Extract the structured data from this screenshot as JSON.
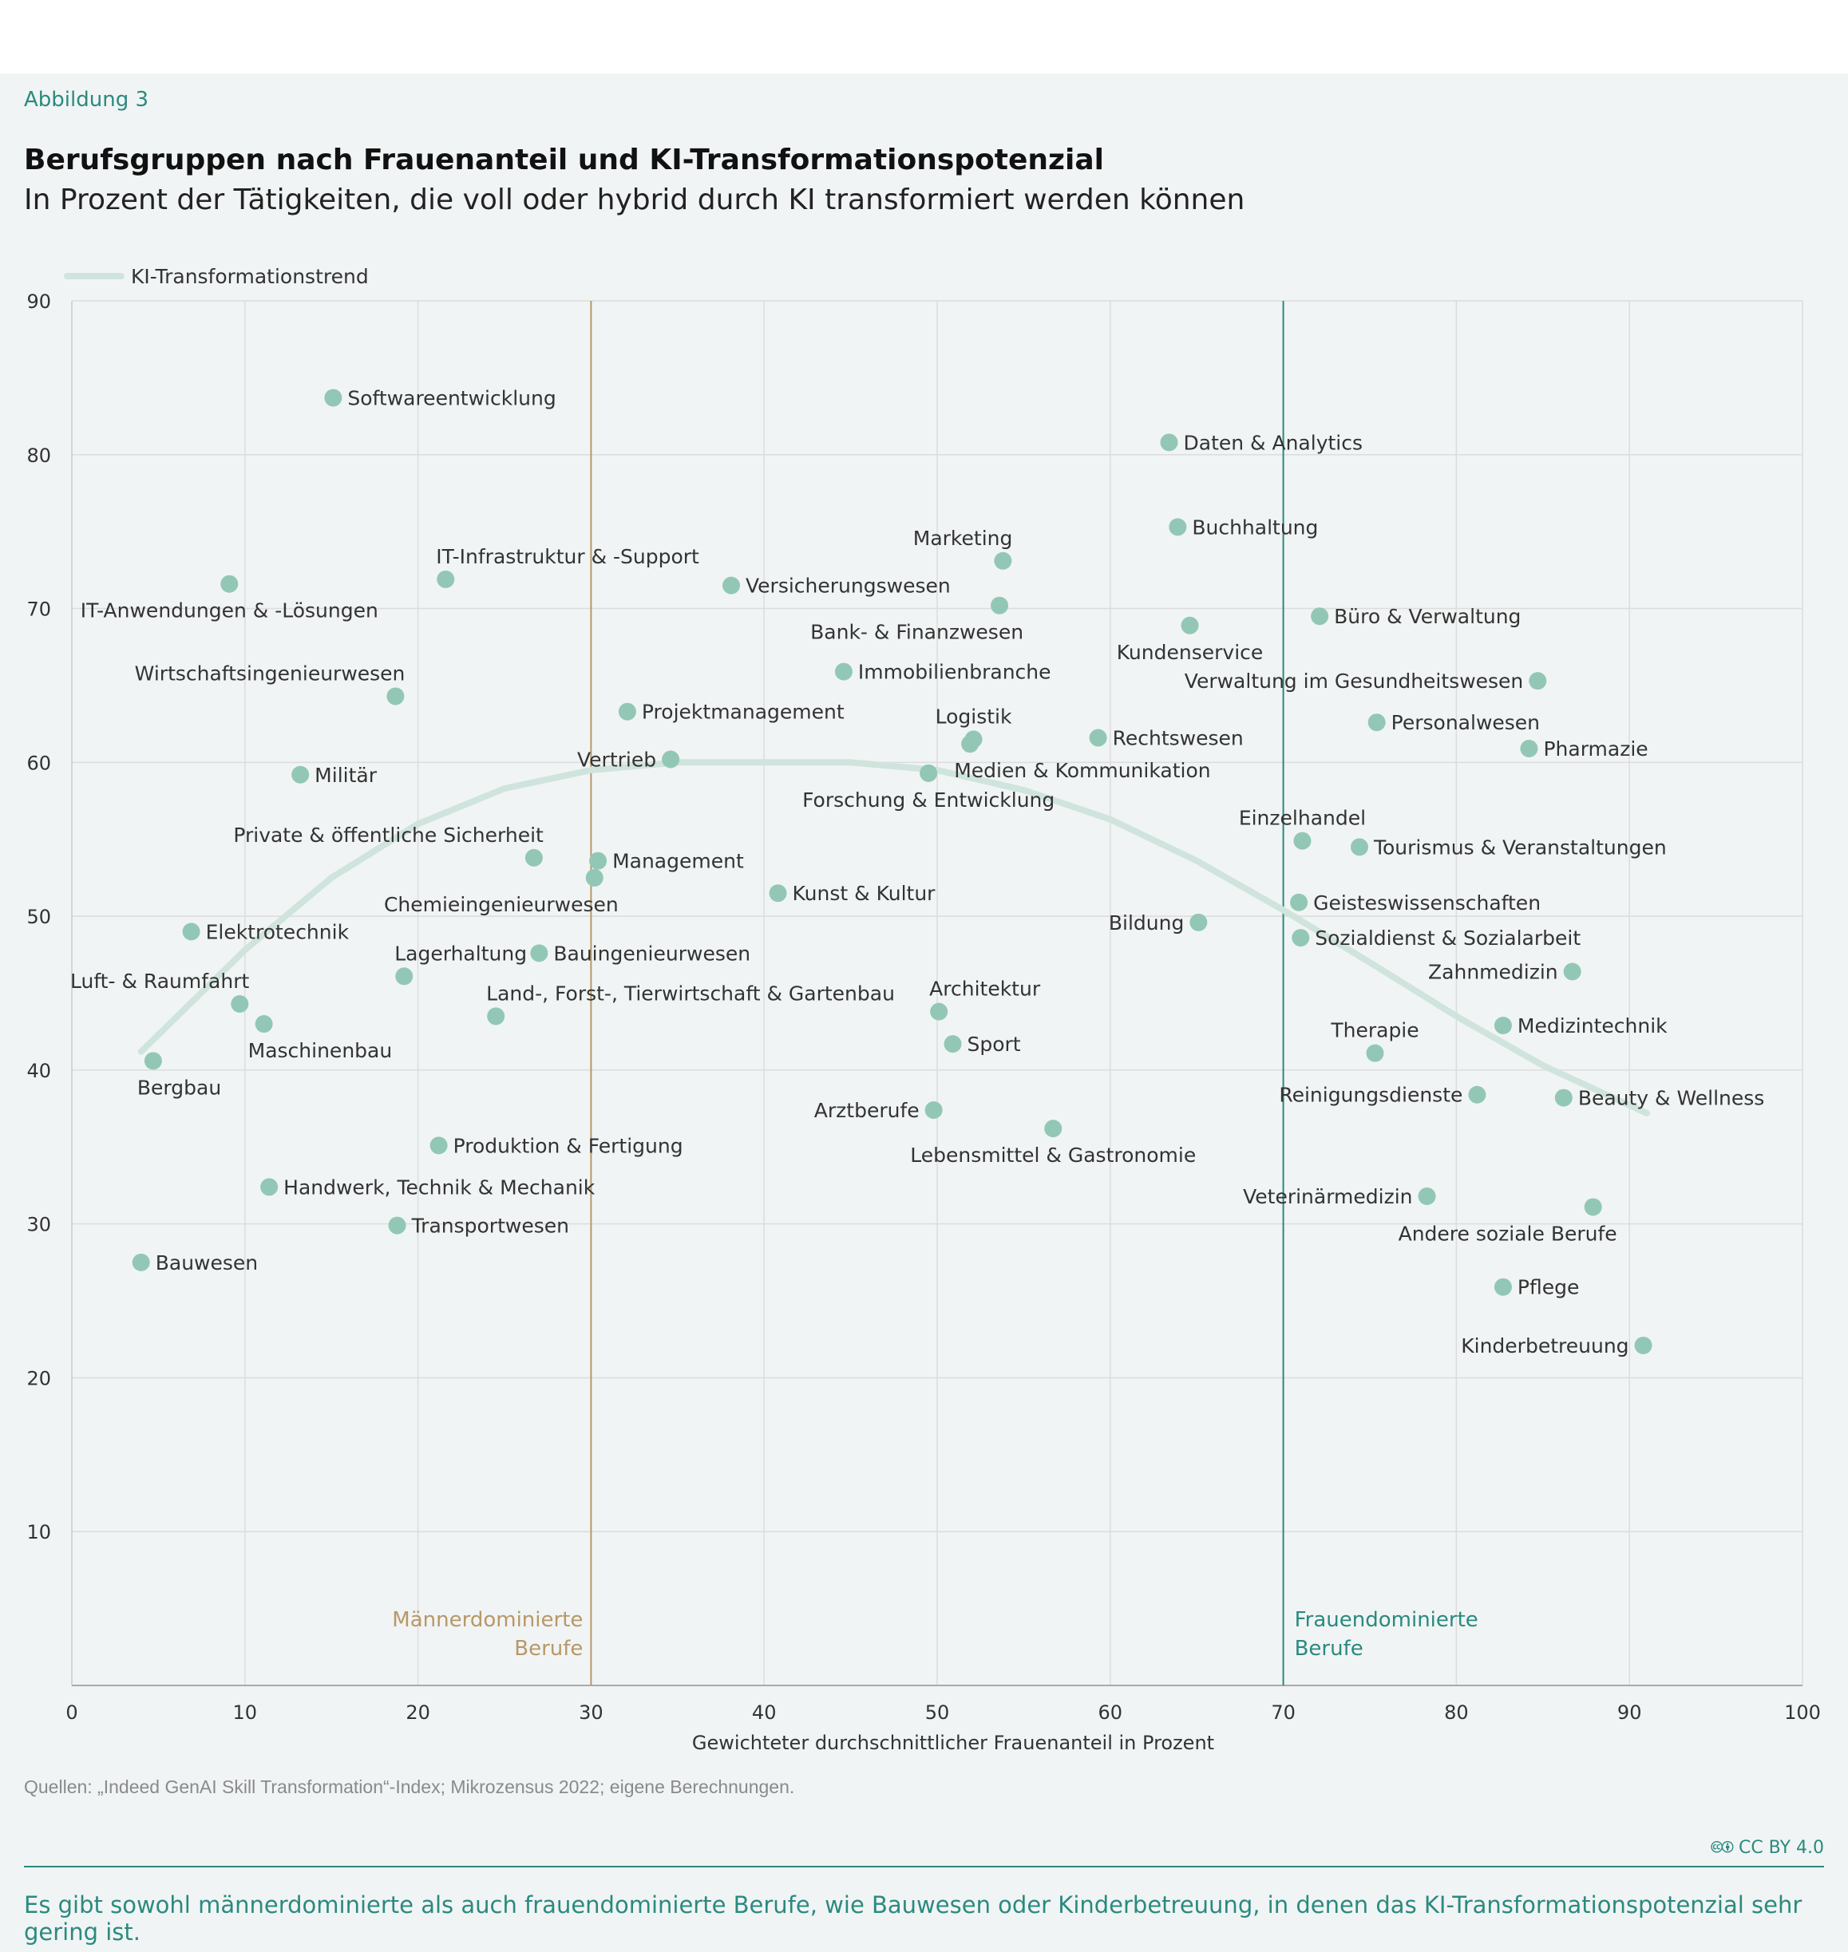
{
  "figure_label": "Abbildung 3",
  "title": "Berufsgruppen nach Frauenanteil und KI-Transformationspotenzial",
  "subtitle": "In Prozent der Tätigkeiten, die voll oder hybrid durch KI transformiert werden können",
  "source": "Quellen: „Indeed GenAI Skill Transformation“-Index; Mikrozensus 2022; eigene Berechnungen.",
  "license": "CC BY 4.0",
  "takeaway": "Es gibt sowohl männerdominierte als auch frauendominierte Berufe, wie Bauwesen oder Kinderbetreuung, in denen das KI-Transformationspotenzial sehr gering ist.",
  "colors": {
    "point": "#92c7b6",
    "trend": "#cfe4dc",
    "male_line": "#b89868",
    "female_line": "#2a8a80",
    "grid": "#dcdcdc",
    "text": "#333333"
  },
  "chart_data": {
    "type": "scatter",
    "xlabel": "Gewichteter durchschnittlicher Frauenanteil in Prozent",
    "ylabel": "",
    "xlim": [
      0,
      100
    ],
    "ylim": [
      0,
      90
    ],
    "x_ticks": [
      0,
      10,
      20,
      30,
      40,
      50,
      60,
      70,
      80,
      90,
      100
    ],
    "y_ticks": [
      10,
      20,
      30,
      40,
      50,
      60,
      70,
      80,
      90
    ],
    "grid": true,
    "legend": [
      {
        "label": "KI-Transformationstrend",
        "type": "line"
      }
    ],
    "trend": {
      "name": "KI-Transformationstrend",
      "points": [
        [
          4,
          41.2
        ],
        [
          10,
          47.8
        ],
        [
          15,
          52.5
        ],
        [
          20,
          56
        ],
        [
          25,
          58.3
        ],
        [
          30,
          59.5
        ],
        [
          35,
          60
        ],
        [
          40,
          60
        ],
        [
          45,
          60
        ],
        [
          50,
          59.5
        ],
        [
          55,
          58.2
        ],
        [
          60,
          56.3
        ],
        [
          65,
          53.6
        ],
        [
          70,
          50.4
        ],
        [
          75,
          47
        ],
        [
          80,
          43.5
        ],
        [
          85,
          40.3
        ],
        [
          91,
          37.2
        ]
      ]
    },
    "reference_lines": [
      {
        "x": 30,
        "label": [
          "Männerdominierte",
          "Berufe"
        ],
        "color_key": "male_line",
        "label_side": "left"
      },
      {
        "x": 70,
        "label": [
          "Frauendominierte",
          "Berufe"
        ],
        "color_key": "female_line",
        "label_side": "right"
      }
    ],
    "points": [
      {
        "label": "Softwareentwicklung",
        "x": 15.1,
        "y": 83.7,
        "pos": "right"
      },
      {
        "label": "Daten & Analytics",
        "x": 63.4,
        "y": 80.8,
        "pos": "right"
      },
      {
        "label": "Buchhaltung",
        "x": 63.9,
        "y": 75.3,
        "pos": "right"
      },
      {
        "label": "Marketing",
        "x": 53.8,
        "y": 73.1,
        "pos": "above-left"
      },
      {
        "label": "IT-Infrastruktur & -Support",
        "x": 21.6,
        "y": 71.9,
        "pos": "above-right"
      },
      {
        "label": "IT-Anwendungen & -Lösungen",
        "x": 9.1,
        "y": 71.6,
        "pos": "below-center"
      },
      {
        "label": "Versicherungswesen",
        "x": 38.1,
        "y": 71.5,
        "pos": "right"
      },
      {
        "label": "Bank- & Finanzwesen",
        "x": 53.6,
        "y": 70.2,
        "pos": "below-left"
      },
      {
        "label": "Büro & Verwaltung",
        "x": 72.1,
        "y": 69.5,
        "pos": "right"
      },
      {
        "label": "Kundenservice",
        "x": 64.6,
        "y": 68.9,
        "pos": "below-center"
      },
      {
        "label": "Immobilienbranche",
        "x": 44.6,
        "y": 65.9,
        "pos": "right"
      },
      {
        "label": "Verwaltung im Gesundheitswesen",
        "x": 84.7,
        "y": 65.3,
        "pos": "left"
      },
      {
        "label": "Wirtschaftsingenieurwesen",
        "x": 18.7,
        "y": 64.3,
        "pos": "above-left"
      },
      {
        "label": "Projektmanagement",
        "x": 32.1,
        "y": 63.3,
        "pos": "right"
      },
      {
        "label": "Personalwesen",
        "x": 75.4,
        "y": 62.6,
        "pos": "right"
      },
      {
        "label": "Logistik",
        "x": 52.1,
        "y": 61.5,
        "pos": "above-center"
      },
      {
        "label": "Rechtswesen",
        "x": 59.3,
        "y": 61.6,
        "pos": "right"
      },
      {
        "label": "Medien & Kommunikation",
        "x": 51.9,
        "y": 61.2,
        "pos": "below-right"
      },
      {
        "label": "Pharmazie",
        "x": 84.2,
        "y": 60.9,
        "pos": "right"
      },
      {
        "label": "Vertrieb",
        "x": 34.6,
        "y": 60.2,
        "pos": "left"
      },
      {
        "label": "Militär",
        "x": 13.2,
        "y": 59.2,
        "pos": "right"
      },
      {
        "label": "Forschung & Entwicklung",
        "x": 49.5,
        "y": 59.3,
        "pos": "below-center"
      },
      {
        "label": "Einzelhandel",
        "x": 71.1,
        "y": 54.9,
        "pos": "above-center"
      },
      {
        "label": "Tourismus & Veranstaltungen",
        "x": 74.4,
        "y": 54.5,
        "pos": "right"
      },
      {
        "label": "Private & öffentliche Sicherheit",
        "x": 26.7,
        "y": 53.8,
        "pos": "above-left"
      },
      {
        "label": "Management",
        "x": 30.4,
        "y": 53.6,
        "pos": "right"
      },
      {
        "label": "Chemieingenieurwesen",
        "x": 30.2,
        "y": 52.5,
        "pos": "below-left"
      },
      {
        "label": "Kunst & Kultur",
        "x": 40.8,
        "y": 51.5,
        "pos": "right"
      },
      {
        "label": "Geisteswissenschaften",
        "x": 70.9,
        "y": 50.9,
        "pos": "right"
      },
      {
        "label": "Bildung",
        "x": 65.1,
        "y": 49.6,
        "pos": "left"
      },
      {
        "label": "Elektrotechnik",
        "x": 6.9,
        "y": 49.0,
        "pos": "right"
      },
      {
        "label": "Sozialdienst & Sozialarbeit",
        "x": 71.0,
        "y": 48.6,
        "pos": "right"
      },
      {
        "label": "Bauingenieurwesen",
        "x": 27.0,
        "y": 47.6,
        "pos": "right"
      },
      {
        "label": "Zahnmedizin",
        "x": 86.7,
        "y": 46.4,
        "pos": "left"
      },
      {
        "label": "Lagerhaltung",
        "x": 19.2,
        "y": 46.1,
        "pos": "above-right"
      },
      {
        "label": "Luft- & Raumfahrt",
        "x": 9.7,
        "y": 44.3,
        "pos": "above-left"
      },
      {
        "label": "Architektur",
        "x": 50.1,
        "y": 43.8,
        "pos": "above-right"
      },
      {
        "label": "Land-, Forst-, Tierwirtschaft & Gartenbau",
        "x": 24.5,
        "y": 43.5,
        "pos": "above-right"
      },
      {
        "label": "Maschinenbau",
        "x": 11.1,
        "y": 43.0,
        "pos": "below-right"
      },
      {
        "label": "Medizintechnik",
        "x": 82.7,
        "y": 42.9,
        "pos": "right"
      },
      {
        "label": "Sport",
        "x": 50.9,
        "y": 41.7,
        "pos": "right"
      },
      {
        "label": "Therapie",
        "x": 75.3,
        "y": 41.1,
        "pos": "above-center"
      },
      {
        "label": "Bergbau",
        "x": 4.7,
        "y": 40.6,
        "pos": "below-right"
      },
      {
        "label": "Reinigungsdienste",
        "x": 81.2,
        "y": 38.4,
        "pos": "left"
      },
      {
        "label": "Beauty & Wellness",
        "x": 86.2,
        "y": 38.2,
        "pos": "right"
      },
      {
        "label": "Arztberufe",
        "x": 49.8,
        "y": 37.4,
        "pos": "left"
      },
      {
        "label": "Lebensmittel & Gastronomie",
        "x": 56.7,
        "y": 36.2,
        "pos": "below-center"
      },
      {
        "label": "Produktion & Fertigung",
        "x": 21.2,
        "y": 35.1,
        "pos": "right"
      },
      {
        "label": "Handwerk, Technik & Mechanik",
        "x": 11.4,
        "y": 32.4,
        "pos": "right"
      },
      {
        "label": "Veterinärmedizin",
        "x": 78.3,
        "y": 31.8,
        "pos": "left"
      },
      {
        "label": "Andere soziale Berufe",
        "x": 87.9,
        "y": 31.1,
        "pos": "below-left"
      },
      {
        "label": "Transportwesen",
        "x": 18.8,
        "y": 29.9,
        "pos": "right"
      },
      {
        "label": "Bauwesen",
        "x": 4.0,
        "y": 27.5,
        "pos": "right"
      },
      {
        "label": "Pflege",
        "x": 82.7,
        "y": 25.9,
        "pos": "right"
      },
      {
        "label": "Kinderbetreuung",
        "x": 90.8,
        "y": 22.1,
        "pos": "left"
      }
    ]
  }
}
